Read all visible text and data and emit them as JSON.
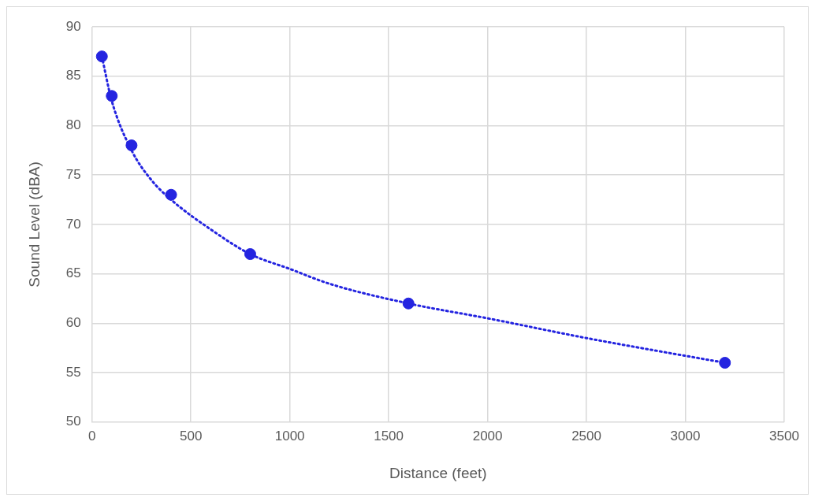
{
  "chart_data": {
    "type": "scatter",
    "xlabel": "Distance (feet)",
    "ylabel": "Sound Level (dBA)",
    "xlim": [
      0,
      3500
    ],
    "xticks": [
      0,
      500,
      1000,
      1500,
      2000,
      2500,
      3000,
      3500
    ],
    "ylim": [
      50,
      90
    ],
    "yticks": [
      50,
      55,
      60,
      65,
      70,
      75,
      80,
      85,
      90
    ],
    "grid": true,
    "legend": false,
    "series": [
      {
        "type": "scatter",
        "color": "#2424e0",
        "marker": "circle",
        "x": [
          50,
          100,
          200,
          400,
          800,
          1600,
          3200
        ],
        "values": [
          87,
          83,
          78,
          73,
          67,
          62,
          56
        ]
      },
      {
        "type": "line",
        "color": "#2424e0",
        "marker": "none",
        "line_style": "dotted",
        "x": [
          50,
          100,
          200,
          300,
          400,
          600,
          800,
          1000,
          1200,
          1600,
          2000,
          2500,
          3200
        ],
        "values": [
          87,
          82.5,
          77.5,
          74.5,
          72.5,
          69.5,
          67,
          65.5,
          64,
          62,
          60.5,
          58.5,
          56
        ]
      }
    ]
  }
}
